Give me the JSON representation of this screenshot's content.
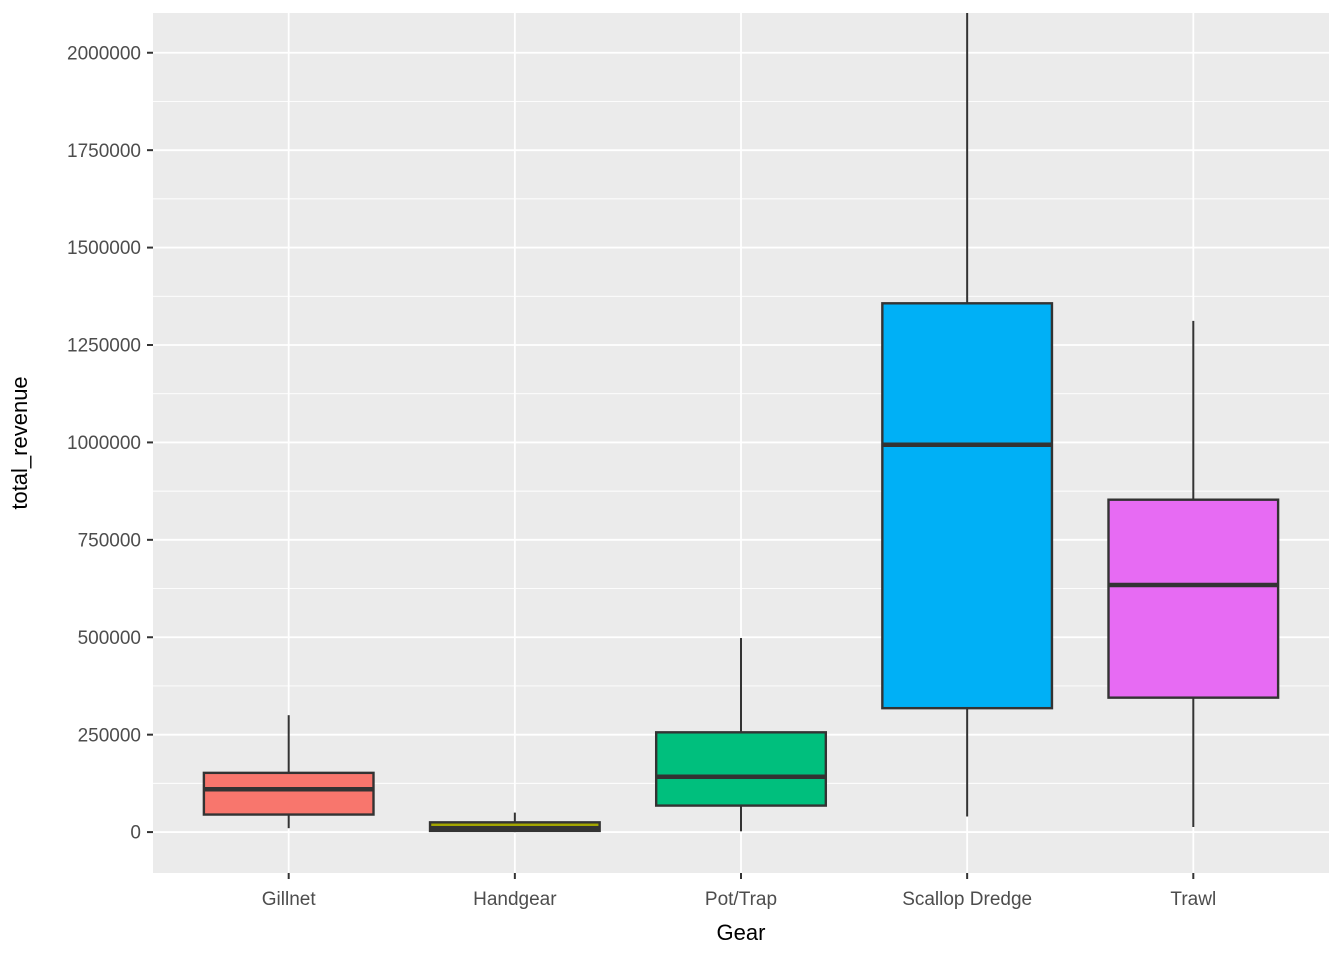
{
  "chart_data": {
    "type": "boxplot",
    "title": "",
    "xlabel": "Gear",
    "ylabel": "total_revenue",
    "categories": [
      "Gillnet",
      "Handgear",
      "Pot/Trap",
      "Scallop Dredge",
      "Trawl"
    ],
    "series": [
      {
        "name": "Gillnet",
        "color": "#F8766D",
        "min": 10000,
        "q1": 45000,
        "median": 110000,
        "q3": 152000,
        "max": 300000
      },
      {
        "name": "Handgear",
        "color": "#A3A500",
        "min": 0,
        "q1": 3000,
        "median": 10000,
        "q3": 25000,
        "max": 50000
      },
      {
        "name": "Pot/Trap",
        "color": "#00BF7D",
        "min": 2000,
        "q1": 68000,
        "median": 142000,
        "q3": 256000,
        "max": 498000
      },
      {
        "name": "Scallop Dredge",
        "color": "#00B0F6",
        "min": 40000,
        "q1": 318000,
        "median": 994000,
        "q3": 1357000,
        "max": 2105000,
        "max_clipped_at_panel_top": true
      },
      {
        "name": "Trawl",
        "color": "#E76BF3",
        "min": 13000,
        "q1": 345000,
        "median": 634000,
        "q3": 853000,
        "max": 1312000
      }
    ],
    "y_ticks": [
      {
        "value": 0,
        "label": "0"
      },
      {
        "value": 250000,
        "label": "250000"
      },
      {
        "value": 500000,
        "label": "500000"
      },
      {
        "value": 750000,
        "label": "750000"
      },
      {
        "value": 1000000,
        "label": "1000000"
      },
      {
        "value": 1250000,
        "label": "1250000"
      },
      {
        "value": 1500000,
        "label": "1500000"
      },
      {
        "value": 1750000,
        "label": "1750000"
      },
      {
        "value": 2000000,
        "label": "2000000"
      }
    ],
    "ylim": [
      -105000,
      2102000
    ],
    "legend": "none",
    "grid": {
      "major_color": "#FFFFFF",
      "minor_color": "#FFFFFF",
      "minor_between_majors": true
    },
    "style": {
      "panel_bg": "#EBEBEB",
      "outer_bg": "#FFFFFF",
      "box_stroke": "#333333",
      "tick_mark_color": "#333333",
      "tick_label_color": "#4D4D4D",
      "axis_title_color": "#000000"
    }
  }
}
